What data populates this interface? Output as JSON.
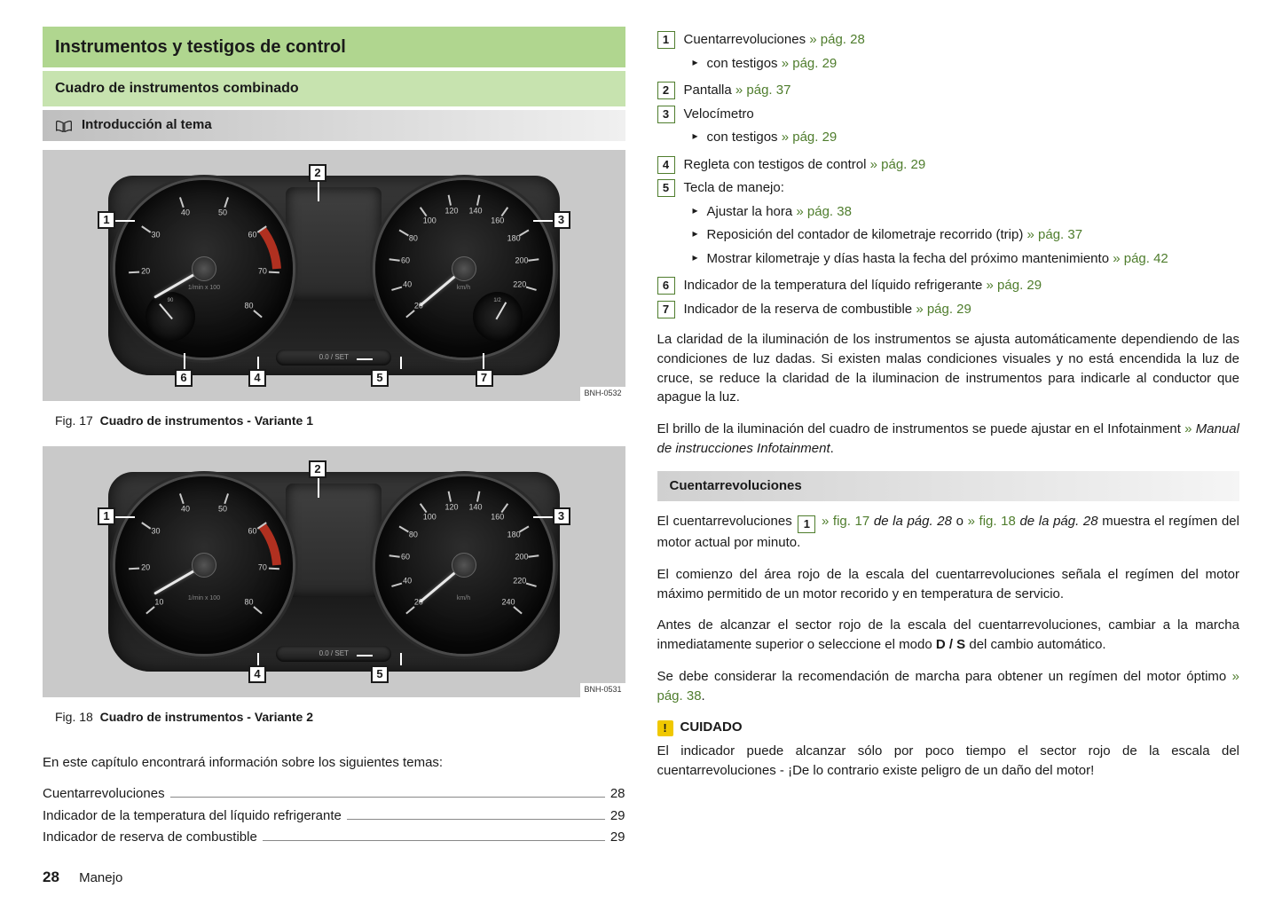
{
  "page": {
    "number": "28",
    "section": "Manejo"
  },
  "headings": {
    "h1": "Instrumentos y testigos de control",
    "h2": "Cuadro de instrumentos combinado",
    "h3": "Introducción al tema",
    "h4": "Cuentarrevoluciones"
  },
  "figures": {
    "f17": {
      "tag": "BNH-0532",
      "label": "Fig. 17",
      "title": "Cuadro de instrumentos - Variante 1",
      "set": "0.0 / SET",
      "callouts": [
        "1",
        "2",
        "3",
        "4",
        "5",
        "6",
        "7"
      ],
      "tach_unit": "1/min\nx 100",
      "speed_unit": "km/h",
      "sub_temp": "90",
      "sub_fuel": "1/2"
    },
    "f18": {
      "tag": "BNH-0531",
      "label": "Fig. 18",
      "title": "Cuadro de instrumentos - Variante 2",
      "set": "0.0 / SET",
      "callouts": [
        "1",
        "2",
        "3",
        "4",
        "5"
      ],
      "tach_unit": "1/min\nx 100",
      "speed_unit": "km/h"
    }
  },
  "tach_labels": [
    "10",
    "20",
    "30",
    "40",
    "50",
    "60",
    "70",
    "80"
  ],
  "speed_labels": [
    "20",
    "40",
    "60",
    "80",
    "100",
    "120",
    "140",
    "160",
    "180",
    "200",
    "220",
    "240"
  ],
  "intro_para": "En este capítulo encontrará información sobre los siguientes temas:",
  "toc": [
    {
      "t": "Cuentarrevoluciones",
      "p": "28"
    },
    {
      "t": "Indicador de la temperatura del líquido refrigerante",
      "p": "29"
    },
    {
      "t": "Indicador de reserva de combustible",
      "p": "29"
    }
  ],
  "legend": [
    {
      "n": "1",
      "t": "Cuentarrevoluciones",
      "ref": "» pág. 28",
      "sub": [
        {
          "t": "con testigos",
          "ref": "» pág. 29"
        }
      ]
    },
    {
      "n": "2",
      "t": "Pantalla",
      "ref": "» pág. 37"
    },
    {
      "n": "3",
      "t": "Velocímetro",
      "sub": [
        {
          "t": "con testigos",
          "ref": "» pág. 29"
        }
      ]
    },
    {
      "n": "4",
      "t": "Regleta con testigos de control",
      "ref": "» pág. 29"
    },
    {
      "n": "5",
      "t": "Tecla de manejo:",
      "sub": [
        {
          "t": "Ajustar la hora",
          "ref": "» pág. 38"
        },
        {
          "t": "Reposición del contador de kilometraje recorrido (trip)",
          "ref": "» pág. 37"
        },
        {
          "t": "Mostrar kilometraje y días hasta la fecha del próximo mantenimiento",
          "ref": "» pág. 42"
        }
      ]
    },
    {
      "n": "6",
      "t": "Indicador de la temperatura del líquido refrigerante",
      "ref": "» pág. 29"
    },
    {
      "n": "7",
      "t": "Indicador de la reserva de combustible",
      "ref": "» pág. 29"
    }
  ],
  "body": {
    "p1": "La claridad de la iluminación de los instrumentos se ajusta automáticamente dependiendo de las condiciones de luz dadas. Si existen malas condiciones visuales y no está encendida la luz de cruce, se reduce la claridad de la iluminacion de instrumentos para indicarle al conductor que apague la luz.",
    "p2a": "El brillo de la iluminación del cuadro de instrumentos se puede ajustar en el Infotainment ",
    "p2ref": "»",
    "p2i": " Manual de instrucciones Infotainment",
    "p2end": "."
  },
  "cuenta": {
    "p1a": "El cuentarrevoluciones ",
    "p1b": " » fig. 17 ",
    "p1c": "de la pág. 28",
    "p1d": " o ",
    "p1e": "» fig. 18 ",
    "p1f": "de la pág. 28",
    "p1g": " muestra el regímen del motor actual por minuto.",
    "p2": "El comienzo del área rojo de la escala del cuentarrevoluciones señala el regímen del motor máximo permitido de un motor recorido y en temperatura de servicio.",
    "p3a": "Antes de alcanzar el sector rojo de la escala del cuentarrevoluciones, cambiar a la marcha inmediatamente superior o seleccione el modo ",
    "p3b": "D / S",
    "p3c": " del cambio automático.",
    "p4a": "Se debe considerar la recomendación de marcha para obtener un regímen del motor óptimo ",
    "p4ref": "» pág. 38",
    "p4b": "."
  },
  "warn": {
    "label": "CUIDADO",
    "text": "El indicador puede alcanzar sólo por poco tiempo el sector rojo de la escala del cuentarrevoluciones - ¡De lo contrario existe peligro de un daño del motor!"
  },
  "colors": {
    "green": "#4f7d2d",
    "warn": "#f0c800"
  }
}
